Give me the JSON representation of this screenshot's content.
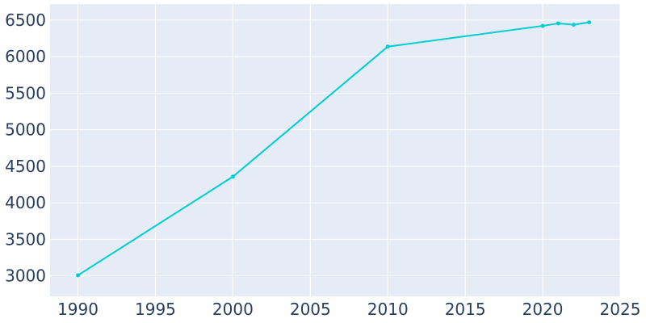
{
  "chart_data": {
    "type": "line",
    "title": "",
    "xlabel": "",
    "ylabel": "",
    "xlim": [
      1988.2,
      2025
    ],
    "ylim": [
      2720,
      6720
    ],
    "x_ticks": [
      1990,
      1995,
      2000,
      2005,
      2010,
      2015,
      2020,
      2025
    ],
    "y_ticks": [
      3000,
      3500,
      4000,
      4500,
      5000,
      5500,
      6000,
      6500
    ],
    "grid": true,
    "legend": "none",
    "colors": {
      "series": "#00ced1",
      "plot_background": "#e5ecf6",
      "grid": "#ffffff",
      "tick_text": "#2a3f5f"
    },
    "series": [
      {
        "x": [
          1990,
          2000,
          2010,
          2020,
          2021,
          2022,
          2023
        ],
        "y": [
          3008,
          4358,
          6137,
          6421,
          6455,
          6437,
          6470
        ]
      }
    ]
  }
}
